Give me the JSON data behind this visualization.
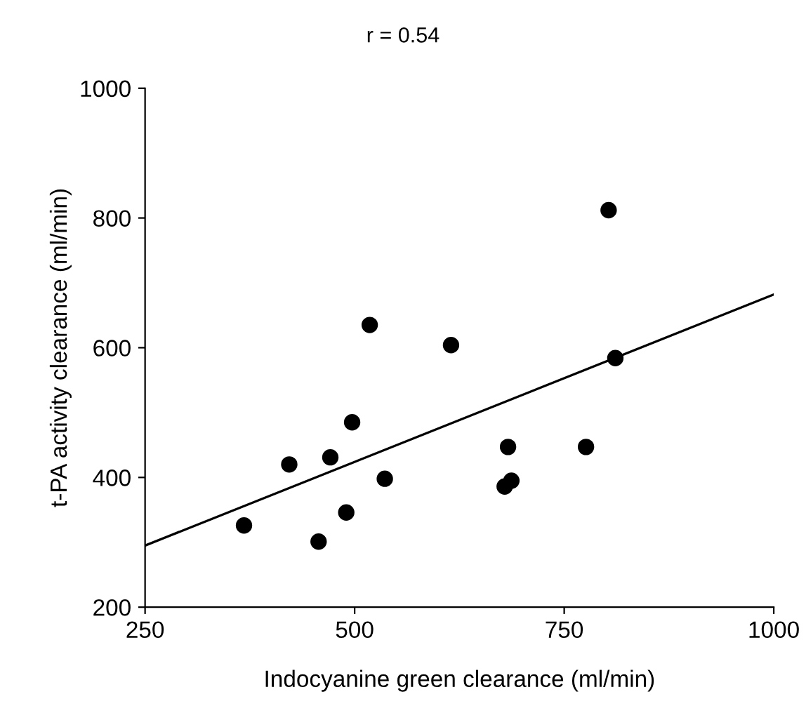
{
  "chart_data": {
    "type": "scatter",
    "title": "r = 0.54",
    "xlabel": "Indocyanine green clearance (ml/min)",
    "ylabel": "t-PA activity clearance (ml/min)",
    "xlim": [
      250,
      1000
    ],
    "ylim": [
      200,
      1000
    ],
    "xticks": [
      250,
      500,
      750,
      1000
    ],
    "yticks": [
      200,
      400,
      600,
      800,
      1000
    ],
    "grid": false,
    "legend": false,
    "marker": "circle",
    "series": [
      {
        "color": "#000000",
        "x": [
          368,
          422,
          457,
          471,
          490,
          497,
          518,
          536,
          615,
          679,
          683,
          687,
          776,
          803,
          811
        ],
        "values": [
          326,
          420,
          301,
          431,
          346,
          485,
          635,
          398,
          604,
          386,
          447,
          395,
          447,
          812,
          584
        ]
      },
      {
        "type": "line",
        "marker": "none",
        "color": "#000000",
        "x": [
          250,
          1000
        ],
        "values": [
          295,
          682
        ]
      }
    ]
  }
}
